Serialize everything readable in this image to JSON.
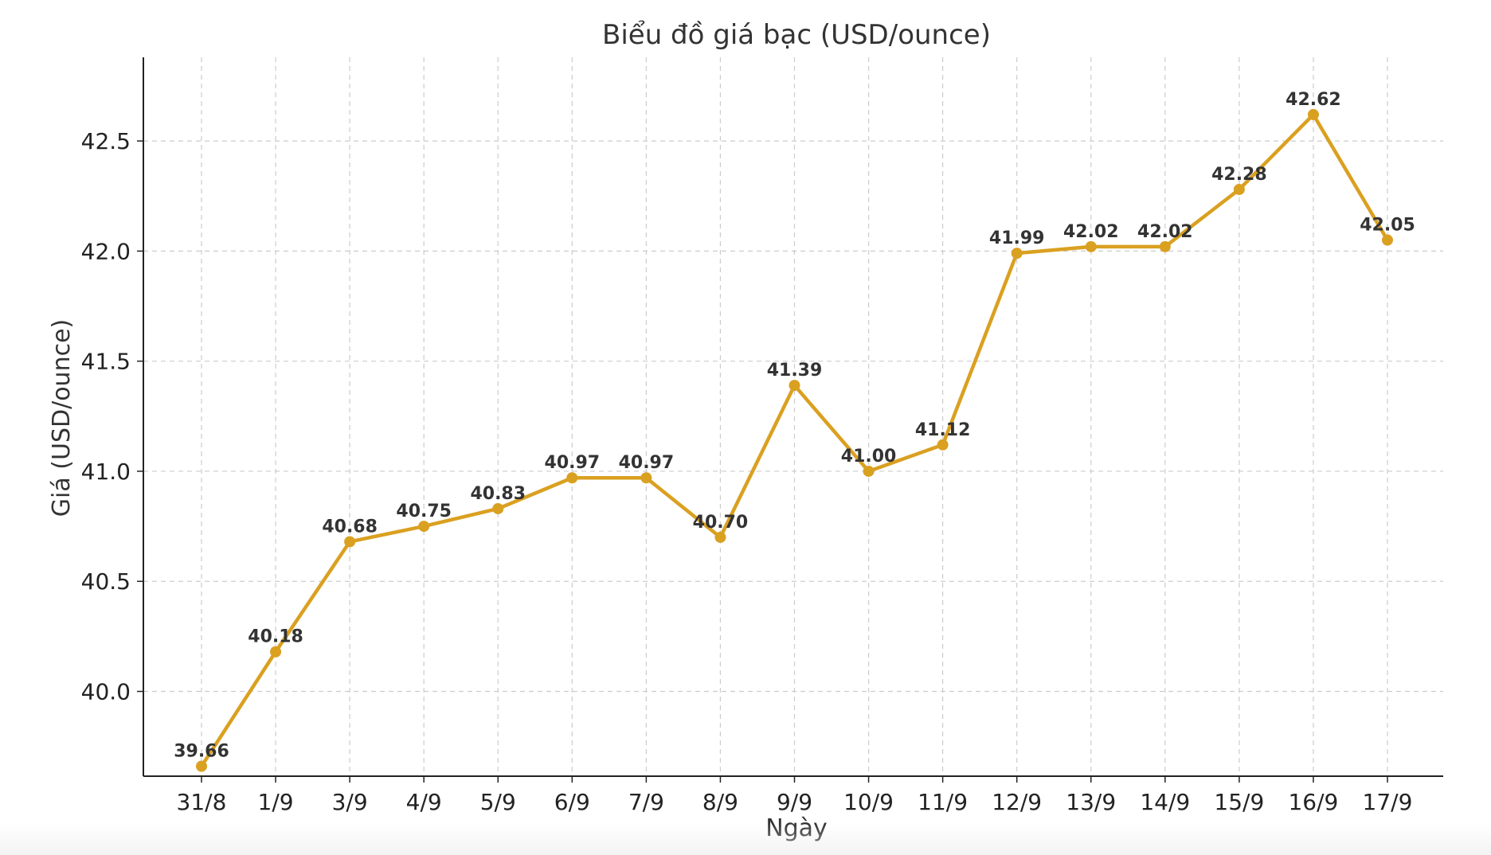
{
  "chart_data": {
    "type": "line",
    "title": "Biểu đồ giá bạc (USD/ounce)",
    "xlabel": "Ngày",
    "ylabel": "Giá (USD/ounce)",
    "categories": [
      "31/8",
      "1/9",
      "3/9",
      "4/9",
      "5/9",
      "6/9",
      "7/9",
      "8/9",
      "9/9",
      "10/9",
      "11/9",
      "12/9",
      "13/9",
      "14/9",
      "15/9",
      "16/9",
      "17/9"
    ],
    "series": [
      {
        "values": [
          39.66,
          40.18,
          40.68,
          40.75,
          40.83,
          40.97,
          40.97,
          40.7,
          41.39,
          41.0,
          41.12,
          41.99,
          42.02,
          42.02,
          42.28,
          42.62,
          42.05
        ],
        "data_labels": [
          "39.66",
          "40.18",
          "40.68",
          "40.75",
          "40.83",
          "40.97",
          "40.97",
          "40.70",
          "41.39",
          "41.00",
          "41.12",
          "41.99",
          "42.02",
          "42.02",
          "42.28",
          "42.62",
          "42.05"
        ],
        "color": "#DAA020"
      }
    ],
    "yticks": [
      40.0,
      40.5,
      41.0,
      41.5,
      42.0,
      42.5
    ],
    "ytick_labels": [
      "40.0",
      "40.5",
      "41.0",
      "41.5",
      "42.0",
      "42.5"
    ],
    "ylim": [
      39.615,
      42.88
    ],
    "grid": true,
    "marker": "circle"
  }
}
